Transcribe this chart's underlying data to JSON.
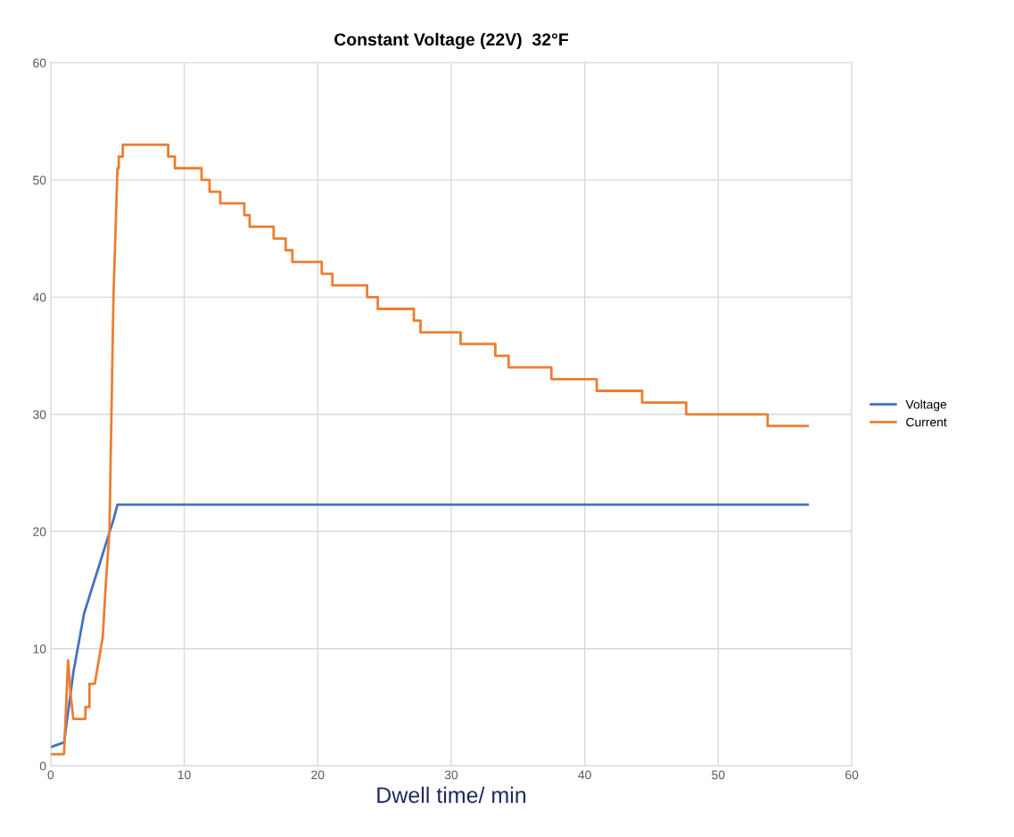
{
  "chart_data": {
    "type": "line",
    "title": "Constant Voltage (22V)  32°F",
    "xlabel": "Dwell time/ min",
    "xlim": [
      0,
      60
    ],
    "xticks": [
      0,
      10,
      20,
      30,
      40,
      50,
      60
    ],
    "ylim": [
      0,
      60
    ],
    "yticks": [
      0,
      10,
      20,
      30,
      40,
      50,
      60
    ],
    "grid": true,
    "legend": "right",
    "marker": "none",
    "line_style": "solid",
    "series": [
      {
        "name": "Voltage",
        "color": "#4472c4",
        "x": [
          0,
          1.0,
          1.7,
          2.5,
          4.7,
          5.0,
          56.7
        ],
        "values": [
          1.6,
          2.0,
          8,
          13,
          21,
          22.3,
          22.3
        ]
      },
      {
        "name": "Current",
        "color": "#ed7d31",
        "x": [
          0,
          1.0,
          1.3,
          1.5,
          1.7,
          2.6,
          2.6,
          2.9,
          2.9,
          3.3,
          3.6,
          3.9,
          4.1,
          4.4,
          4.7,
          5.0,
          5.1,
          5.1,
          5.4,
          5.4,
          8.8,
          8.8,
          9.3,
          9.3,
          11.3,
          11.3,
          11.9,
          11.9,
          12.7,
          12.7,
          14.5,
          14.5,
          14.9,
          14.9,
          16.7,
          16.7,
          17.6,
          17.6,
          18.1,
          18.1,
          20.3,
          20.3,
          21.1,
          21.1,
          23.7,
          23.7,
          24.5,
          24.5,
          27.2,
          27.2,
          27.7,
          27.7,
          30.7,
          30.7,
          33.3,
          33.3,
          34.3,
          34.3,
          37.5,
          37.5,
          40.9,
          40.9,
          44.3,
          44.3,
          47.6,
          47.6,
          53.7,
          53.7,
          56.7
        ],
        "values": [
          1,
          1,
          9,
          6,
          4,
          4,
          5,
          5,
          7,
          7,
          9,
          11,
          15,
          20,
          40,
          51,
          51,
          52,
          52,
          53,
          53,
          52,
          52,
          51,
          51,
          50,
          50,
          49,
          49,
          48,
          48,
          47,
          47,
          46,
          46,
          45,
          45,
          44,
          44,
          43,
          43,
          42,
          42,
          41,
          41,
          40,
          40,
          39,
          39,
          38,
          38,
          37,
          37,
          36,
          36,
          35,
          35,
          34,
          34,
          33,
          33,
          32,
          32,
          31,
          31,
          30,
          30,
          29,
          29
        ]
      }
    ]
  }
}
